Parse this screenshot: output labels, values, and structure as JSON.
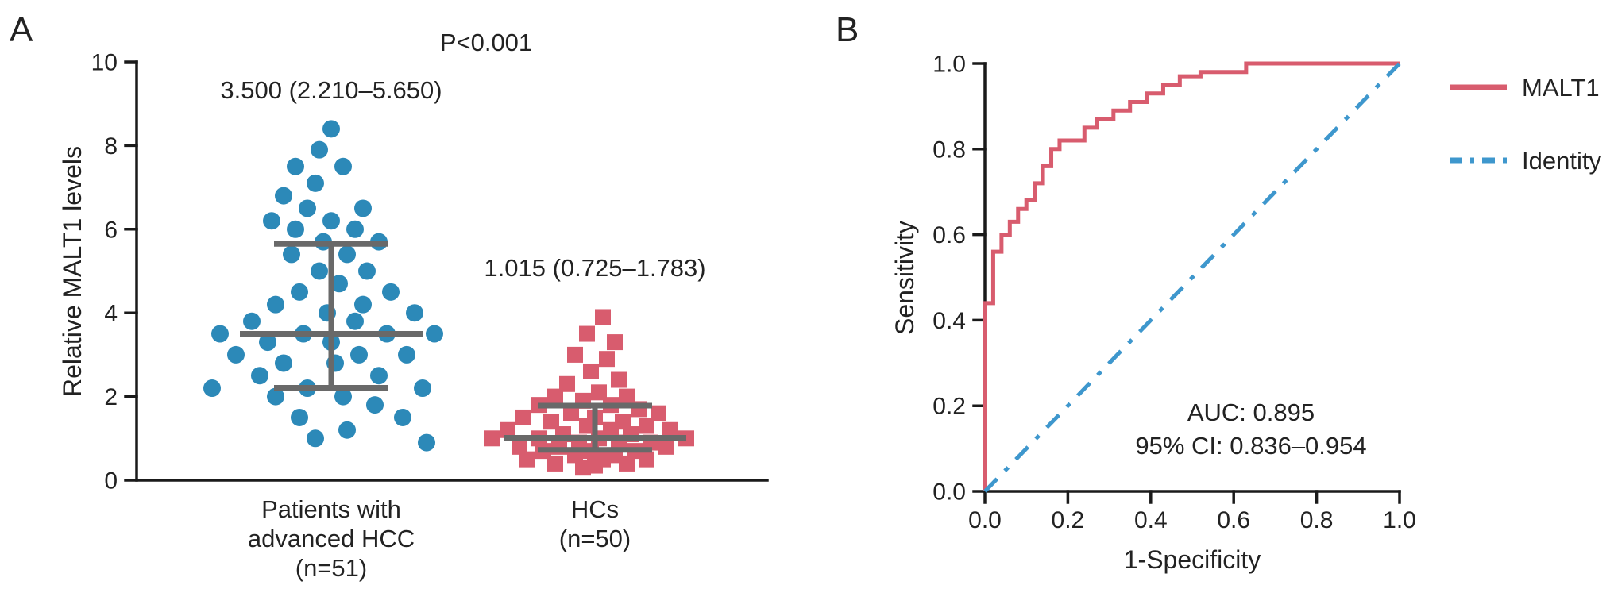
{
  "chart_data": [
    {
      "type": "scatter",
      "panel_label": "A",
      "p_value_annotation": "P<0.001",
      "ylabel": "Relative MALT1 levels",
      "ylim": [
        0,
        10
      ],
      "yticks": [
        "0",
        "2",
        "4",
        "6",
        "8",
        "10"
      ],
      "error_bar_color": "#696969",
      "groups": [
        {
          "name": "Patients with advanced HCC (n=51)",
          "label_lines": [
            "Patients with",
            "advanced HCC",
            "(n=51)"
          ],
          "n": 51,
          "annotation": "3.500 (2.210–5.650)",
          "median": 3.5,
          "iqr_low": 2.21,
          "iqr_high": 5.65,
          "marker": "circle",
          "color": "#2c89b8",
          "points": [
            [
              0,
              8.4
            ],
            [
              -15,
              7.9
            ],
            [
              -45,
              7.5
            ],
            [
              15,
              7.5
            ],
            [
              -20,
              7.1
            ],
            [
              -60,
              6.8
            ],
            [
              -30,
              6.5
            ],
            [
              40,
              6.5
            ],
            [
              -75,
              6.2
            ],
            [
              0,
              6.2
            ],
            [
              -45,
              6.0
            ],
            [
              30,
              6.0
            ],
            [
              -10,
              5.7
            ],
            [
              60,
              5.7
            ],
            [
              -50,
              5.4
            ],
            [
              20,
              5.4
            ],
            [
              -15,
              5.0
            ],
            [
              45,
              5.0
            ],
            [
              10,
              4.7
            ],
            [
              -40,
              4.5
            ],
            [
              75,
              4.5
            ],
            [
              -70,
              4.2
            ],
            [
              40,
              4.2
            ],
            [
              -5,
              4.0
            ],
            [
              105,
              4.0
            ],
            [
              -100,
              3.8
            ],
            [
              30,
              3.8
            ],
            [
              -140,
              3.5
            ],
            [
              -35,
              3.5
            ],
            [
              70,
              3.5
            ],
            [
              130,
              3.5
            ],
            [
              -80,
              3.3
            ],
            [
              0,
              3.3
            ],
            [
              -120,
              3.0
            ],
            [
              35,
              3.0
            ],
            [
              95,
              3.0
            ],
            [
              -60,
              2.8
            ],
            [
              5,
              2.8
            ],
            [
              -90,
              2.5
            ],
            [
              60,
              2.5
            ],
            [
              -150,
              2.2
            ],
            [
              -30,
              2.2
            ],
            [
              115,
              2.2
            ],
            [
              -70,
              2.0
            ],
            [
              15,
              2.0
            ],
            [
              55,
              1.8
            ],
            [
              -40,
              1.5
            ],
            [
              90,
              1.5
            ],
            [
              20,
              1.2
            ],
            [
              -20,
              1.0
            ],
            [
              120,
              0.9
            ]
          ]
        },
        {
          "name": "HCs (n=50)",
          "label_lines": [
            "HCs",
            "(n=50)"
          ],
          "n": 50,
          "annotation": "1.015 (0.725–1.783)",
          "median": 1.015,
          "iqr_low": 0.725,
          "iqr_high": 1.783,
          "marker": "square",
          "color": "#d85c6e",
          "points": [
            [
              10,
              3.9
            ],
            [
              -10,
              3.5
            ],
            [
              25,
              3.3
            ],
            [
              -25,
              3.0
            ],
            [
              15,
              2.9
            ],
            [
              -5,
              2.6
            ],
            [
              30,
              2.4
            ],
            [
              -35,
              2.3
            ],
            [
              5,
              2.1
            ],
            [
              -50,
              2.0
            ],
            [
              40,
              2.0
            ],
            [
              -15,
              1.9
            ],
            [
              -70,
              1.8
            ],
            [
              20,
              1.8
            ],
            [
              55,
              1.7
            ],
            [
              -30,
              1.6
            ],
            [
              80,
              1.6
            ],
            [
              -90,
              1.5
            ],
            [
              0,
              1.5
            ],
            [
              -55,
              1.4
            ],
            [
              35,
              1.4
            ],
            [
              -10,
              1.3
            ],
            [
              65,
              1.3
            ],
            [
              -110,
              1.2
            ],
            [
              20,
              1.2
            ],
            [
              95,
              1.2
            ],
            [
              -40,
              1.1
            ],
            [
              45,
              1.1
            ],
            [
              -130,
              1.0
            ],
            [
              -70,
              1.0
            ],
            [
              5,
              1.0
            ],
            [
              115,
              1.0
            ],
            [
              -20,
              0.9
            ],
            [
              30,
              0.9
            ],
            [
              70,
              0.9
            ],
            [
              -95,
              0.8
            ],
            [
              -45,
              0.8
            ],
            [
              90,
              0.8
            ],
            [
              -65,
              0.7
            ],
            [
              -5,
              0.7
            ],
            [
              50,
              0.7
            ],
            [
              -25,
              0.6
            ],
            [
              25,
              0.6
            ],
            [
              -85,
              0.5
            ],
            [
              10,
              0.5
            ],
            [
              65,
              0.5
            ],
            [
              -50,
              0.4
            ],
            [
              40,
              0.4
            ],
            [
              -15,
              0.3
            ],
            [
              0,
              0.35
            ]
          ]
        }
      ]
    },
    {
      "type": "line",
      "panel_label": "B",
      "xlabel": "1-Specificity",
      "ylabel": "Sensitivity",
      "xlim": [
        0,
        1
      ],
      "ylim": [
        0,
        1
      ],
      "xticks": [
        "0.0",
        "0.2",
        "0.4",
        "0.6",
        "0.8",
        "1.0"
      ],
      "yticks": [
        "0.0",
        "0.2",
        "0.4",
        "0.6",
        "0.8",
        "1.0"
      ],
      "auc": 0.895,
      "ci_95": "0.836–0.954",
      "annotation_lines": [
        "AUC: 0.895",
        "95% CI: 0.836–0.954"
      ],
      "legend_position": "right",
      "series": [
        {
          "name": "MALT1",
          "style": "solid",
          "color": "#d85c6e",
          "points": [
            [
              0,
              0
            ],
            [
              0,
              0.44
            ],
            [
              0.02,
              0.44
            ],
            [
              0.02,
              0.56
            ],
            [
              0.04,
              0.56
            ],
            [
              0.04,
              0.6
            ],
            [
              0.06,
              0.6
            ],
            [
              0.06,
              0.63
            ],
            [
              0.08,
              0.63
            ],
            [
              0.08,
              0.66
            ],
            [
              0.1,
              0.66
            ],
            [
              0.1,
              0.68
            ],
            [
              0.12,
              0.68
            ],
            [
              0.12,
              0.72
            ],
            [
              0.14,
              0.72
            ],
            [
              0.14,
              0.76
            ],
            [
              0.16,
              0.76
            ],
            [
              0.16,
              0.8
            ],
            [
              0.18,
              0.8
            ],
            [
              0.18,
              0.82
            ],
            [
              0.24,
              0.82
            ],
            [
              0.24,
              0.85
            ],
            [
              0.27,
              0.85
            ],
            [
              0.27,
              0.87
            ],
            [
              0.31,
              0.87
            ],
            [
              0.31,
              0.89
            ],
            [
              0.35,
              0.89
            ],
            [
              0.35,
              0.91
            ],
            [
              0.39,
              0.91
            ],
            [
              0.39,
              0.93
            ],
            [
              0.43,
              0.93
            ],
            [
              0.43,
              0.95
            ],
            [
              0.47,
              0.95
            ],
            [
              0.47,
              0.97
            ],
            [
              0.52,
              0.97
            ],
            [
              0.52,
              0.98
            ],
            [
              0.63,
              0.98
            ],
            [
              0.63,
              1.0
            ],
            [
              1,
              1
            ]
          ]
        },
        {
          "name": "Identity",
          "style": "dash-dot",
          "color": "#3e97cd",
          "points": [
            [
              0,
              0
            ],
            [
              1,
              1
            ]
          ]
        }
      ]
    }
  ]
}
